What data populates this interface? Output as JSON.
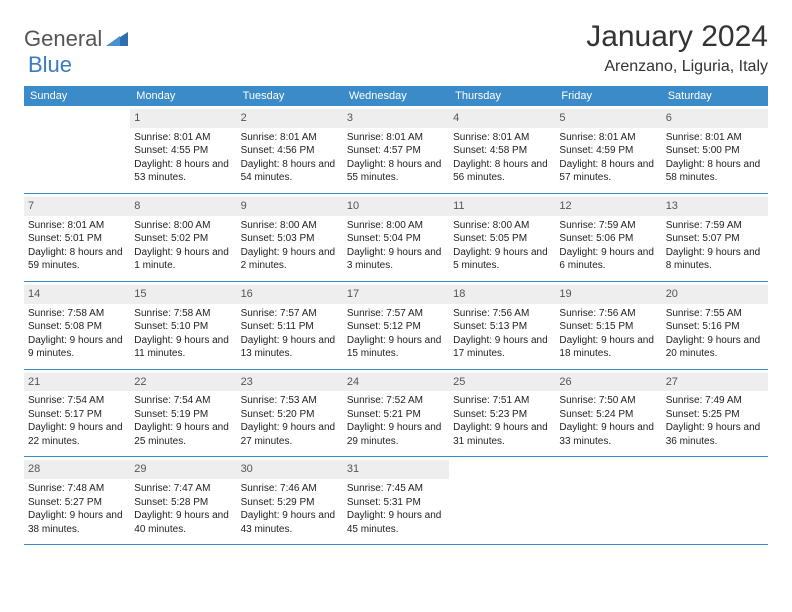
{
  "logo": {
    "part1": "General",
    "part2": "Blue"
  },
  "title": "January 2024",
  "location": "Arenzano, Liguria, Italy",
  "colors": {
    "header_bg": "#3b8bc9",
    "header_text": "#ffffff",
    "daynum_bg": "#eeeeee",
    "border": "#3b8bc9",
    "logo_gray": "#555555",
    "logo_blue": "#3a7bbf"
  },
  "day_names": [
    "Sunday",
    "Monday",
    "Tuesday",
    "Wednesday",
    "Thursday",
    "Friday",
    "Saturday"
  ],
  "weeks": [
    [
      {
        "n": "",
        "t": ""
      },
      {
        "n": "1",
        "t": "Sunrise: 8:01 AM\nSunset: 4:55 PM\nDaylight: 8 hours and 53 minutes."
      },
      {
        "n": "2",
        "t": "Sunrise: 8:01 AM\nSunset: 4:56 PM\nDaylight: 8 hours and 54 minutes."
      },
      {
        "n": "3",
        "t": "Sunrise: 8:01 AM\nSunset: 4:57 PM\nDaylight: 8 hours and 55 minutes."
      },
      {
        "n": "4",
        "t": "Sunrise: 8:01 AM\nSunset: 4:58 PM\nDaylight: 8 hours and 56 minutes."
      },
      {
        "n": "5",
        "t": "Sunrise: 8:01 AM\nSunset: 4:59 PM\nDaylight: 8 hours and 57 minutes."
      },
      {
        "n": "6",
        "t": "Sunrise: 8:01 AM\nSunset: 5:00 PM\nDaylight: 8 hours and 58 minutes."
      }
    ],
    [
      {
        "n": "7",
        "t": "Sunrise: 8:01 AM\nSunset: 5:01 PM\nDaylight: 8 hours and 59 minutes."
      },
      {
        "n": "8",
        "t": "Sunrise: 8:00 AM\nSunset: 5:02 PM\nDaylight: 9 hours and 1 minute."
      },
      {
        "n": "9",
        "t": "Sunrise: 8:00 AM\nSunset: 5:03 PM\nDaylight: 9 hours and 2 minutes."
      },
      {
        "n": "10",
        "t": "Sunrise: 8:00 AM\nSunset: 5:04 PM\nDaylight: 9 hours and 3 minutes."
      },
      {
        "n": "11",
        "t": "Sunrise: 8:00 AM\nSunset: 5:05 PM\nDaylight: 9 hours and 5 minutes."
      },
      {
        "n": "12",
        "t": "Sunrise: 7:59 AM\nSunset: 5:06 PM\nDaylight: 9 hours and 6 minutes."
      },
      {
        "n": "13",
        "t": "Sunrise: 7:59 AM\nSunset: 5:07 PM\nDaylight: 9 hours and 8 minutes."
      }
    ],
    [
      {
        "n": "14",
        "t": "Sunrise: 7:58 AM\nSunset: 5:08 PM\nDaylight: 9 hours and 9 minutes."
      },
      {
        "n": "15",
        "t": "Sunrise: 7:58 AM\nSunset: 5:10 PM\nDaylight: 9 hours and 11 minutes."
      },
      {
        "n": "16",
        "t": "Sunrise: 7:57 AM\nSunset: 5:11 PM\nDaylight: 9 hours and 13 minutes."
      },
      {
        "n": "17",
        "t": "Sunrise: 7:57 AM\nSunset: 5:12 PM\nDaylight: 9 hours and 15 minutes."
      },
      {
        "n": "18",
        "t": "Sunrise: 7:56 AM\nSunset: 5:13 PM\nDaylight: 9 hours and 17 minutes."
      },
      {
        "n": "19",
        "t": "Sunrise: 7:56 AM\nSunset: 5:15 PM\nDaylight: 9 hours and 18 minutes."
      },
      {
        "n": "20",
        "t": "Sunrise: 7:55 AM\nSunset: 5:16 PM\nDaylight: 9 hours and 20 minutes."
      }
    ],
    [
      {
        "n": "21",
        "t": "Sunrise: 7:54 AM\nSunset: 5:17 PM\nDaylight: 9 hours and 22 minutes."
      },
      {
        "n": "22",
        "t": "Sunrise: 7:54 AM\nSunset: 5:19 PM\nDaylight: 9 hours and 25 minutes."
      },
      {
        "n": "23",
        "t": "Sunrise: 7:53 AM\nSunset: 5:20 PM\nDaylight: 9 hours and 27 minutes."
      },
      {
        "n": "24",
        "t": "Sunrise: 7:52 AM\nSunset: 5:21 PM\nDaylight: 9 hours and 29 minutes."
      },
      {
        "n": "25",
        "t": "Sunrise: 7:51 AM\nSunset: 5:23 PM\nDaylight: 9 hours and 31 minutes."
      },
      {
        "n": "26",
        "t": "Sunrise: 7:50 AM\nSunset: 5:24 PM\nDaylight: 9 hours and 33 minutes."
      },
      {
        "n": "27",
        "t": "Sunrise: 7:49 AM\nSunset: 5:25 PM\nDaylight: 9 hours and 36 minutes."
      }
    ],
    [
      {
        "n": "28",
        "t": "Sunrise: 7:48 AM\nSunset: 5:27 PM\nDaylight: 9 hours and 38 minutes."
      },
      {
        "n": "29",
        "t": "Sunrise: 7:47 AM\nSunset: 5:28 PM\nDaylight: 9 hours and 40 minutes."
      },
      {
        "n": "30",
        "t": "Sunrise: 7:46 AM\nSunset: 5:29 PM\nDaylight: 9 hours and 43 minutes."
      },
      {
        "n": "31",
        "t": "Sunrise: 7:45 AM\nSunset: 5:31 PM\nDaylight: 9 hours and 45 minutes."
      },
      {
        "n": "",
        "t": ""
      },
      {
        "n": "",
        "t": ""
      },
      {
        "n": "",
        "t": ""
      }
    ]
  ]
}
